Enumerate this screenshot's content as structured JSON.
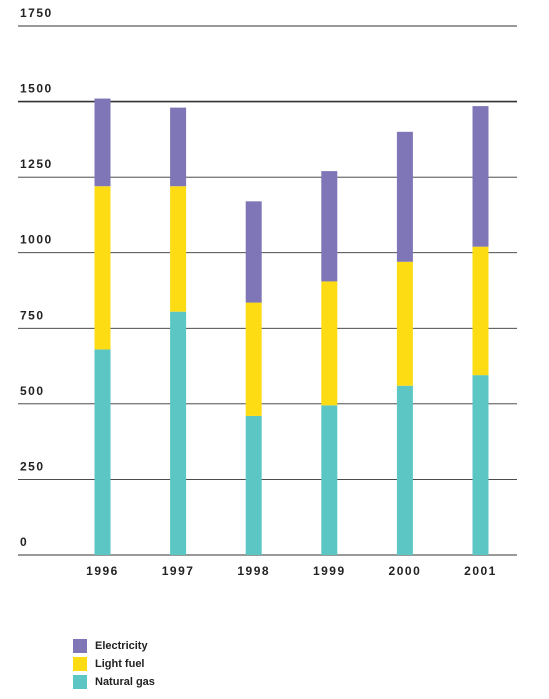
{
  "chart_data": {
    "type": "bar",
    "stacked": true,
    "categories": [
      "1996",
      "1997",
      "1998",
      "1999",
      "2000",
      "2001"
    ],
    "series": [
      {
        "name": "Natural gas",
        "color": "#5cc6c4",
        "values": [
          680,
          805,
          460,
          495,
          560,
          595
        ]
      },
      {
        "name": "Light fuel",
        "color": "#fedc14",
        "values": [
          540,
          415,
          375,
          410,
          410,
          425
        ]
      },
      {
        "name": "Electricity",
        "color": "#7f76b7",
        "values": [
          290,
          260,
          335,
          365,
          430,
          465
        ]
      }
    ],
    "yticks": [
      "0",
      "250",
      "500",
      "750",
      "1000",
      "1250",
      "1500",
      "1750"
    ],
    "ylim": [
      0,
      1750
    ],
    "grid": true,
    "legend_position": "bottom-left",
    "title": "",
    "xlabel": "",
    "ylabel": ""
  },
  "legend": [
    {
      "name": "Electricity",
      "color": "#7f76b7"
    },
    {
      "name": "Light fuel",
      "color": "#fedc14"
    },
    {
      "name": "Natural gas",
      "color": "#5cc6c4"
    }
  ]
}
